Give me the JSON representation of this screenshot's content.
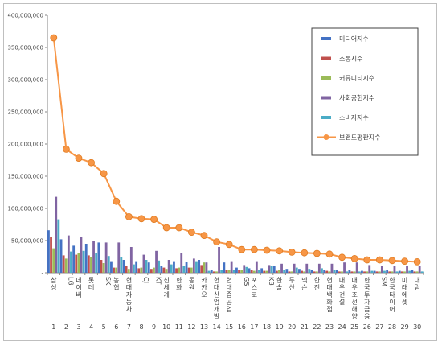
{
  "chart_data": {
    "type": "bar",
    "title": "",
    "xlabel": "",
    "ylabel": "",
    "ylim": [
      0,
      400000000
    ],
    "yticks": [
      "-",
      "50,000,000",
      "100,000,000",
      "150,000,000",
      "200,000,000",
      "250,000,000",
      "300,000,000",
      "350,000,000",
      "400,000,000"
    ],
    "grid": false,
    "legend_position": "top-right",
    "categories": [
      "삼성",
      "LG",
      "네이버",
      "롯데",
      "SK",
      "농협",
      "현대자동차",
      "CJ",
      "KT",
      "신세계",
      "한화",
      "동원",
      "카카오",
      "현대산업개발",
      "현대중공업",
      "GS",
      "포스코",
      "KB",
      "한솔",
      "두산",
      "넥슨",
      "한진",
      "현대백화점",
      "대우건설",
      "대우조선해양",
      "한국투자금융",
      "SM",
      "한국타이어",
      "미래에셋",
      "대림"
    ],
    "ranks": [
      "1",
      "2",
      "3",
      "4",
      "5",
      "6",
      "7",
      "8",
      "9",
      "10",
      "11",
      "12",
      "13",
      "14",
      "15",
      "16",
      "17",
      "18",
      "19",
      "20",
      "21",
      "22",
      "23",
      "24",
      "25",
      "26",
      "27",
      "28",
      "29",
      "30"
    ],
    "series": [
      {
        "name": "미디어지수",
        "color": "#4472c4",
        "values": [
          66000000,
          52000000,
          42000000,
          45000000,
          47000000,
          18000000,
          20000000,
          18000000,
          16000000,
          10000000,
          18000000,
          17000000,
          20000000,
          4000000,
          16000000,
          8000000,
          7000000,
          7000000,
          10000000,
          6000000,
          6000000,
          5000000,
          5000000,
          4000000,
          4000000,
          3000000,
          3000000,
          4000000,
          3000000,
          4000000
        ]
      },
      {
        "name": "소통지수",
        "color": "#c0504d",
        "values": [
          56000000,
          27000000,
          28000000,
          27000000,
          20000000,
          8000000,
          10000000,
          7000000,
          6000000,
          8000000,
          7000000,
          8000000,
          12000000,
          2000000,
          5000000,
          4000000,
          4000000,
          3000000,
          3000000,
          2000000,
          3000000,
          2000000,
          3000000,
          2000000,
          2000000,
          2000000,
          2000000,
          2000000,
          2000000,
          2000000
        ]
      },
      {
        "name": "커뮤니티지수",
        "color": "#9bbb59",
        "values": [
          38000000,
          22000000,
          30000000,
          25000000,
          15000000,
          8000000,
          6000000,
          8000000,
          8000000,
          6000000,
          8000000,
          8000000,
          16000000,
          2000000,
          4000000,
          4000000,
          3000000,
          3000000,
          5000000,
          2000000,
          2000000,
          2000000,
          2000000,
          2000000,
          2000000,
          2000000,
          2000000,
          2000000,
          2000000,
          2000000
        ]
      },
      {
        "name": "사회공헌지수",
        "color": "#8064a2",
        "values": [
          118000000,
          58000000,
          55000000,
          50000000,
          47000000,
          47000000,
          40000000,
          28000000,
          34000000,
          20000000,
          30000000,
          22000000,
          16000000,
          40000000,
          18000000,
          12000000,
          18000000,
          12000000,
          14000000,
          14000000,
          14000000,
          14000000,
          14000000,
          16000000,
          16000000,
          12000000,
          10000000,
          10000000,
          10000000,
          10000000
        ]
      },
      {
        "name": "소비자지수",
        "color": "#4bacc6",
        "values": [
          83000000,
          33000000,
          34000000,
          30000000,
          26000000,
          25000000,
          13000000,
          20000000,
          19000000,
          13000000,
          10000000,
          18000000,
          3000000,
          4000000,
          5000000,
          9000000,
          5000000,
          10000000,
          5000000,
          8000000,
          6000000,
          7000000,
          5000000,
          2000000,
          2000000,
          3000000,
          3000000,
          2000000,
          3000000,
          2000000
        ]
      }
    ],
    "line_series": {
      "name": "브랜드평판지수",
      "color": "#f79646",
      "values": [
        365000000,
        192000000,
        178000000,
        171000000,
        154000000,
        111000000,
        87000000,
        84000000,
        83000000,
        70000000,
        70000000,
        63000000,
        58000000,
        48000000,
        44000000,
        36000000,
        36000000,
        35000000,
        34000000,
        32000000,
        31000000,
        30000000,
        29000000,
        24000000,
        22000000,
        20000000,
        20000000,
        19000000,
        18000000,
        17000000
      ]
    }
  }
}
